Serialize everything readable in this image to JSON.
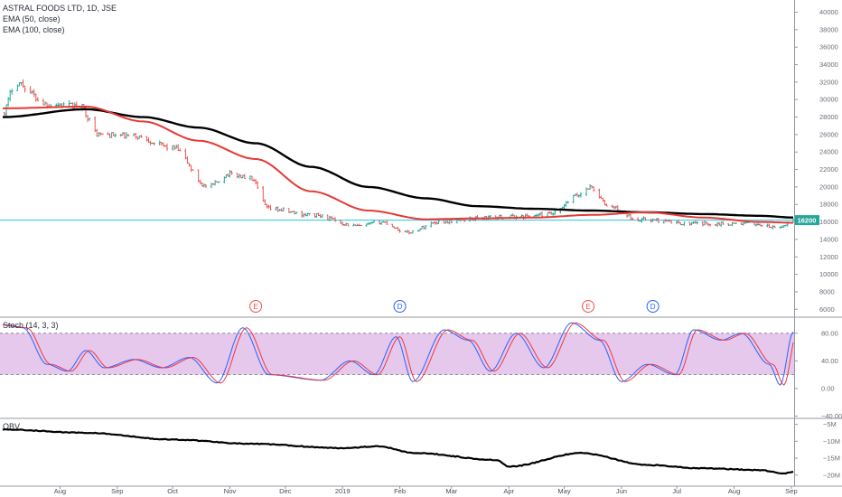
{
  "legend": {
    "title": "ASTRAL FOODS LTD, 1D, JSE",
    "ema50": "EMA (50, close)",
    "ema100": "EMA (100, close)",
    "stoch": "Stoch (14, 3, 3)",
    "obv": "OBV"
  },
  "price_label": "16200",
  "colors": {
    "bull": "#26a69a",
    "bear": "#ef5350",
    "ema50": "#e53935",
    "ema100": "#000000",
    "price_line": "#26c6da",
    "stoch_k": "#2962ff",
    "stoch_d": "#f23645",
    "stoch_band": "#e1bee7"
  },
  "chart_data": [
    {
      "type": "line",
      "panel": "price",
      "x_ticks": [
        "Aug",
        "Sep",
        "Oct",
        "Nov",
        "Dec",
        "2019",
        "Feb",
        "Mar",
        "Apr",
        "May",
        "Jun",
        "Jul",
        "Aug",
        "Sep"
      ],
      "y_ticks": [
        40000,
        38000,
        36000,
        34000,
        32000,
        30000,
        28000,
        26000,
        24000,
        22000,
        20000,
        18000,
        16000,
        14000,
        12000,
        10000,
        8000,
        6000
      ],
      "ylim": [
        5200,
        41400
      ],
      "events": [
        {
          "label": "E",
          "date": "2018-11-15",
          "color": "#ef5350"
        },
        {
          "label": "D",
          "date": "2019-02-01",
          "color": "#2962ff"
        },
        {
          "label": "E",
          "date": "2019-05-14",
          "color": "#ef5350"
        },
        {
          "label": "D",
          "date": "2019-06-18",
          "color": "#2962ff"
        }
      ],
      "price_keypoints": [
        {
          "date": "2018-07-01",
          "close": 28500
        },
        {
          "date": "2018-07-08",
          "close": 32000
        },
        {
          "date": "2018-07-25",
          "close": 29500
        },
        {
          "date": "2018-08-12",
          "close": 29200
        },
        {
          "date": "2018-08-22",
          "close": 26000
        },
        {
          "date": "2018-09-10",
          "close": 25800
        },
        {
          "date": "2018-10-01",
          "close": 24500
        },
        {
          "date": "2018-10-20",
          "close": 20000
        },
        {
          "date": "2018-11-01",
          "close": 21500
        },
        {
          "date": "2018-11-12",
          "close": 21000
        },
        {
          "date": "2018-11-22",
          "close": 17500
        },
        {
          "date": "2018-12-15",
          "close": 16800
        },
        {
          "date": "2019-01-10",
          "close": 15500
        },
        {
          "date": "2019-01-22",
          "close": 16000
        },
        {
          "date": "2019-02-05",
          "close": 14800
        },
        {
          "date": "2019-02-22",
          "close": 16000
        },
        {
          "date": "2019-03-20",
          "close": 16500
        },
        {
          "date": "2019-04-05",
          "close": 16600
        },
        {
          "date": "2019-04-25",
          "close": 16900
        },
        {
          "date": "2019-05-08",
          "close": 19000
        },
        {
          "date": "2019-05-15",
          "close": 20000
        },
        {
          "date": "2019-05-25",
          "close": 17800
        },
        {
          "date": "2019-06-10",
          "close": 16300
        },
        {
          "date": "2019-07-10",
          "close": 15800
        },
        {
          "date": "2019-08-10",
          "close": 15800
        },
        {
          "date": "2019-08-25",
          "close": 15300
        },
        {
          "date": "2019-09-02",
          "close": 16200
        }
      ],
      "ema50": [
        {
          "date": "2018-07-01",
          "value": 29000
        },
        {
          "date": "2018-08-15",
          "value": 29200
        },
        {
          "date": "2018-09-15",
          "value": 27500
        },
        {
          "date": "2018-10-15",
          "value": 25300
        },
        {
          "date": "2018-11-15",
          "value": 23200
        },
        {
          "date": "2018-12-15",
          "value": 19500
        },
        {
          "date": "2019-01-15",
          "value": 17300
        },
        {
          "date": "2019-02-15",
          "value": 16300
        },
        {
          "date": "2019-03-15",
          "value": 16400
        },
        {
          "date": "2019-04-15",
          "value": 16500
        },
        {
          "date": "2019-05-15",
          "value": 16800
        },
        {
          "date": "2019-06-15",
          "value": 17100
        },
        {
          "date": "2019-07-15",
          "value": 16500
        },
        {
          "date": "2019-08-15",
          "value": 16000
        },
        {
          "date": "2019-09-02",
          "value": 15900
        }
      ],
      "ema100": [
        {
          "date": "2018-07-01",
          "value": 28000
        },
        {
          "date": "2018-08-15",
          "value": 28900
        },
        {
          "date": "2018-09-15",
          "value": 28000
        },
        {
          "date": "2018-10-15",
          "value": 26800
        },
        {
          "date": "2018-11-15",
          "value": 25000
        },
        {
          "date": "2018-12-15",
          "value": 22300
        },
        {
          "date": "2019-01-15",
          "value": 20000
        },
        {
          "date": "2019-02-15",
          "value": 18700
        },
        {
          "date": "2019-03-15",
          "value": 17800
        },
        {
          "date": "2019-04-15",
          "value": 17500
        },
        {
          "date": "2019-05-15",
          "value": 17300
        },
        {
          "date": "2019-06-15",
          "value": 17100
        },
        {
          "date": "2019-07-15",
          "value": 16900
        },
        {
          "date": "2019-08-15",
          "value": 16700
        },
        {
          "date": "2019-09-02",
          "value": 16500
        }
      ],
      "last_price": 16200
    },
    {
      "type": "line",
      "panel": "stochastic",
      "y_ticks": [
        80,
        40,
        0,
        -40
      ],
      "y_tick_labels": [
        "80.00",
        "40.00",
        "0.00",
        "−40.00"
      ],
      "ylim": [
        -42,
        102
      ],
      "band": [
        20,
        80
      ],
      "k_keypoints": [
        {
          "date": "2018-07-01",
          "value": 92
        },
        {
          "date": "2018-07-12",
          "value": 88
        },
        {
          "date": "2018-07-25",
          "value": 35
        },
        {
          "date": "2018-08-05",
          "value": 25
        },
        {
          "date": "2018-08-15",
          "value": 55
        },
        {
          "date": "2018-08-25",
          "value": 30
        },
        {
          "date": "2018-09-10",
          "value": 42
        },
        {
          "date": "2018-09-25",
          "value": 30
        },
        {
          "date": "2018-10-10",
          "value": 45
        },
        {
          "date": "2018-10-25",
          "value": 8
        },
        {
          "date": "2018-11-08",
          "value": 88
        },
        {
          "date": "2018-11-22",
          "value": 20
        },
        {
          "date": "2018-12-20",
          "value": 12
        },
        {
          "date": "2019-01-05",
          "value": 40
        },
        {
          "date": "2019-01-18",
          "value": 20
        },
        {
          "date": "2019-01-30",
          "value": 75
        },
        {
          "date": "2019-02-08",
          "value": 10
        },
        {
          "date": "2019-02-25",
          "value": 85
        },
        {
          "date": "2019-03-10",
          "value": 70
        },
        {
          "date": "2019-03-22",
          "value": 25
        },
        {
          "date": "2019-04-05",
          "value": 80
        },
        {
          "date": "2019-04-20",
          "value": 30
        },
        {
          "date": "2019-05-05",
          "value": 95
        },
        {
          "date": "2019-05-20",
          "value": 70
        },
        {
          "date": "2019-06-01",
          "value": 10
        },
        {
          "date": "2019-06-15",
          "value": 35
        },
        {
          "date": "2019-06-30",
          "value": 20
        },
        {
          "date": "2019-07-10",
          "value": 85
        },
        {
          "date": "2019-07-25",
          "value": 70
        },
        {
          "date": "2019-08-05",
          "value": 80
        },
        {
          "date": "2019-08-20",
          "value": 35
        },
        {
          "date": "2019-08-26",
          "value": 5
        },
        {
          "date": "2019-09-02",
          "value": 82
        }
      ]
    },
    {
      "type": "line",
      "panel": "obv",
      "y_ticks": [
        -5000000,
        -10000000,
        -15000000,
        -20000000
      ],
      "y_tick_labels": [
        "−5M",
        "−10M",
        "−15M",
        "−20M"
      ],
      "ylim": [
        -23000000,
        -3500000
      ],
      "keypoints": [
        {
          "date": "2018-07-01",
          "value": -6500000
        },
        {
          "date": "2018-08-15",
          "value": -7500000
        },
        {
          "date": "2018-10-01",
          "value": -9500000
        },
        {
          "date": "2018-11-15",
          "value": -10800000
        },
        {
          "date": "2018-12-31",
          "value": -12000000
        },
        {
          "date": "2019-01-20",
          "value": -11500000
        },
        {
          "date": "2019-02-10",
          "value": -13500000
        },
        {
          "date": "2019-03-25",
          "value": -15500000
        },
        {
          "date": "2019-04-01",
          "value": -17500000
        },
        {
          "date": "2019-05-10",
          "value": -13500000
        },
        {
          "date": "2019-06-15",
          "value": -17000000
        },
        {
          "date": "2019-07-15",
          "value": -18000000
        },
        {
          "date": "2019-08-15",
          "value": -18500000
        },
        {
          "date": "2019-08-28",
          "value": -19500000
        },
        {
          "date": "2019-09-02",
          "value": -19000000
        }
      ]
    }
  ]
}
